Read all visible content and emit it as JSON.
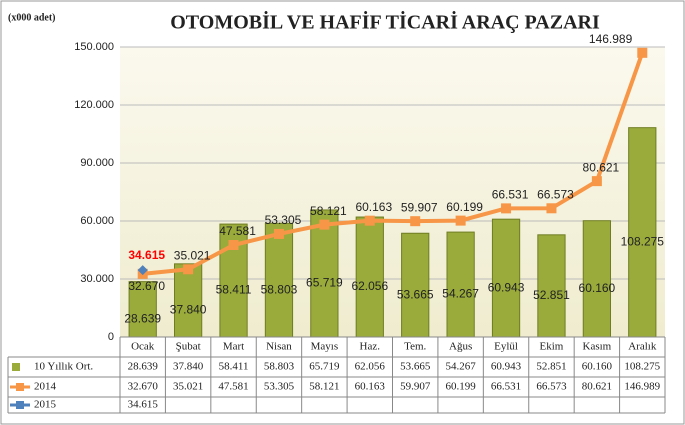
{
  "chart_data": {
    "type": "bar",
    "title": "OTOMOBİL VE HAFİF TİCARİ ARAÇ PAZARI",
    "y_label": "(x000 adet)",
    "categories": [
      "Ocak",
      "Şubat",
      "Mart",
      "Nisan",
      "Mayıs",
      "Haz.",
      "Tem.",
      "Ağus",
      "Eylül",
      "Ekim",
      "Kasım",
      "Aralık"
    ],
    "series": [
      {
        "name": "10 Yıllık Ort.",
        "type": "bar",
        "color": "#9aab3c",
        "values": [
          28639,
          37840,
          58411,
          58803,
          65719,
          62056,
          53665,
          54267,
          60943,
          52851,
          60160,
          108275
        ],
        "value_labels": [
          "28.639",
          "37.840",
          "58.411",
          "58.803",
          "65.719",
          "62.056",
          "53.665",
          "54.267",
          "60.943",
          "52.851",
          "60.160",
          "108.275"
        ]
      },
      {
        "name": "2014",
        "type": "line",
        "color": "#f79646",
        "values": [
          32670,
          35021,
          47581,
          53305,
          58121,
          60163,
          59907,
          60199,
          66531,
          66573,
          80621,
          146989
        ],
        "value_labels": [
          "32.670",
          "35.021",
          "47.581",
          "53.305",
          "58.121",
          "60.163",
          "59.907",
          "60.199",
          "66.531",
          "66.573",
          "80.621",
          "146.989"
        ]
      },
      {
        "name": "2015",
        "type": "line",
        "color": "#4f81bd",
        "label_color": "#ff0000",
        "values": [
          34615,
          null,
          null,
          null,
          null,
          null,
          null,
          null,
          null,
          null,
          null,
          null
        ],
        "value_labels": [
          "34.615",
          null,
          null,
          null,
          null,
          null,
          null,
          null,
          null,
          null,
          null,
          null
        ]
      }
    ],
    "ylim": [
      0,
      150000
    ],
    "yticks": [
      {
        "value": 0,
        "label": "0"
      },
      {
        "value": 30000,
        "label": "30.000"
      },
      {
        "value": 60000,
        "label": "60.000"
      },
      {
        "value": 90000,
        "label": "90.000"
      },
      {
        "value": 120000,
        "label": "120.000"
      },
      {
        "value": 150000,
        "label": "150.000"
      }
    ],
    "grid": true
  }
}
